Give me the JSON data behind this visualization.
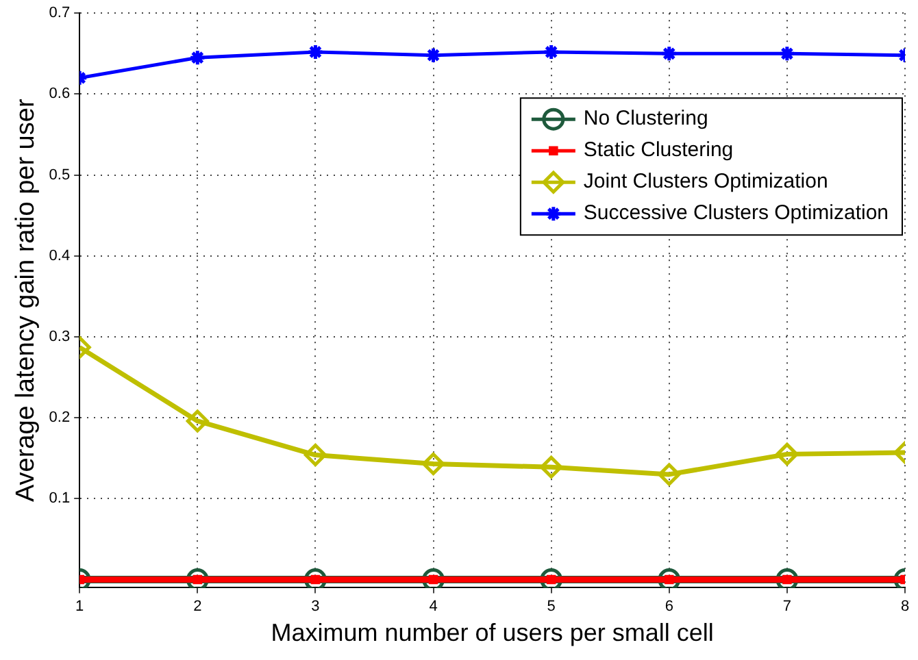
{
  "chart_data": {
    "type": "line",
    "xlabel": "Maximum number of users per small cell",
    "ylabel": "Average latency gain ratio per user",
    "x": [
      1,
      2,
      3,
      4,
      5,
      6,
      7,
      8
    ],
    "xlim": [
      1,
      8
    ],
    "xticks": [
      1,
      2,
      3,
      4,
      5,
      6,
      7,
      8
    ],
    "ylim": [
      -0.01,
      0.7
    ],
    "yticks": [
      0.1,
      0.2,
      0.3,
      0.4,
      0.5,
      0.6,
      0.7
    ],
    "grid": true,
    "legend": "top right",
    "line_style": "solid",
    "series": [
      {
        "name": "No Clustering",
        "color": "#1e5a3c",
        "marker": "circle",
        "values": [
          0,
          0,
          0,
          0,
          0,
          0,
          0,
          0
        ]
      },
      {
        "name": "Static Clustering",
        "color": "#ff0000",
        "marker": "square",
        "values": [
          0,
          0,
          0,
          0,
          0,
          0,
          0,
          0
        ]
      },
      {
        "name": "Joint Clusters Optimization",
        "color": "#bfbf00",
        "marker": "diamond",
        "values": [
          0.287,
          0.196,
          0.154,
          0.143,
          0.139,
          0.13,
          0.155,
          0.157
        ]
      },
      {
        "name": "Successive Clusters Optimization",
        "color": "#0000ff",
        "marker": "cross",
        "values": [
          0.62,
          0.645,
          0.652,
          0.648,
          0.652,
          0.65,
          0.65,
          0.648
        ]
      }
    ]
  }
}
